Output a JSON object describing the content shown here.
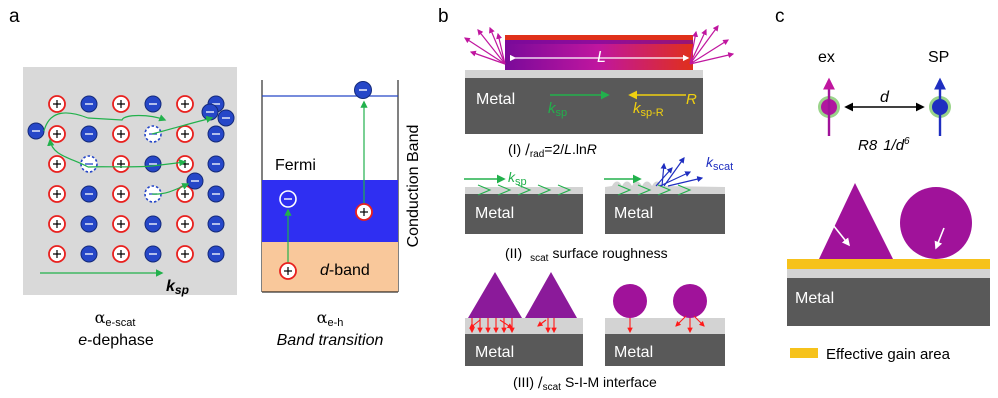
{
  "panels": {
    "a": {
      "letter": "a",
      "lattice": {
        "k_symbol": "k",
        "k_sub": "sp",
        "alpha_symbol": "α",
        "alpha_sub": "e-scat",
        "caption_e": "e",
        "caption_rest": "-dephase"
      },
      "band": {
        "fermi": "Fermi",
        "dband_d": "d",
        "dband_rest": "-band",
        "conduction": "Conduction Band",
        "alpha_symbol": "α",
        "alpha_sub": "e-h",
        "caption": "Band transition"
      }
    },
    "b": {
      "letter": "b",
      "top": {
        "L": "L",
        "metal": "Metal",
        "k_sp": "k",
        "k_sp_sub": "sp",
        "k_spR": "k",
        "k_spR_sub": "sp-R",
        "R": "R",
        "caption_prefix": "(I) ",
        "caption_glyph": "/",
        "caption_sub": "rad",
        "caption_mid": "=2/",
        "caption_L": "L",
        "caption_ln": ".ln",
        "caption_R": "R"
      },
      "mid": {
        "k": "k",
        "k_sub": "sp",
        "kscat": "k",
        "kscat_sub": "scat",
        "metal_left": "Metal",
        "metal_right": "Metal",
        "caption_prefix": "(II)",
        "caption_sub": "scat",
        "caption_rest": "surface roughness"
      },
      "bot": {
        "metal_left": "Metal",
        "metal_right": "Metal",
        "caption_prefix": "(III) ",
        "caption_glyph": "/",
        "caption_sub": "scat",
        "caption_rest": "S-I-M interface"
      }
    },
    "c": {
      "letter": "c",
      "ex": "ex",
      "sp": "SP",
      "d": "d",
      "formula_r8": "R8",
      "formula_rest": "1/d",
      "formula_exp": "6",
      "metal": "Metal",
      "legend": "Effective gain area"
    }
  },
  "colors": {
    "metal": "#595959",
    "dielectric": "#d3d3d3",
    "panel_bg": "#d9d9d9",
    "positive_ring": "#e8201e",
    "electron": "#2647c8",
    "arrow_green": "#22b14c",
    "magenta": "#a0129a",
    "gain": "#f6c21b",
    "fermi_blue": "#2f2ff2",
    "dband": "#f9c89b"
  }
}
